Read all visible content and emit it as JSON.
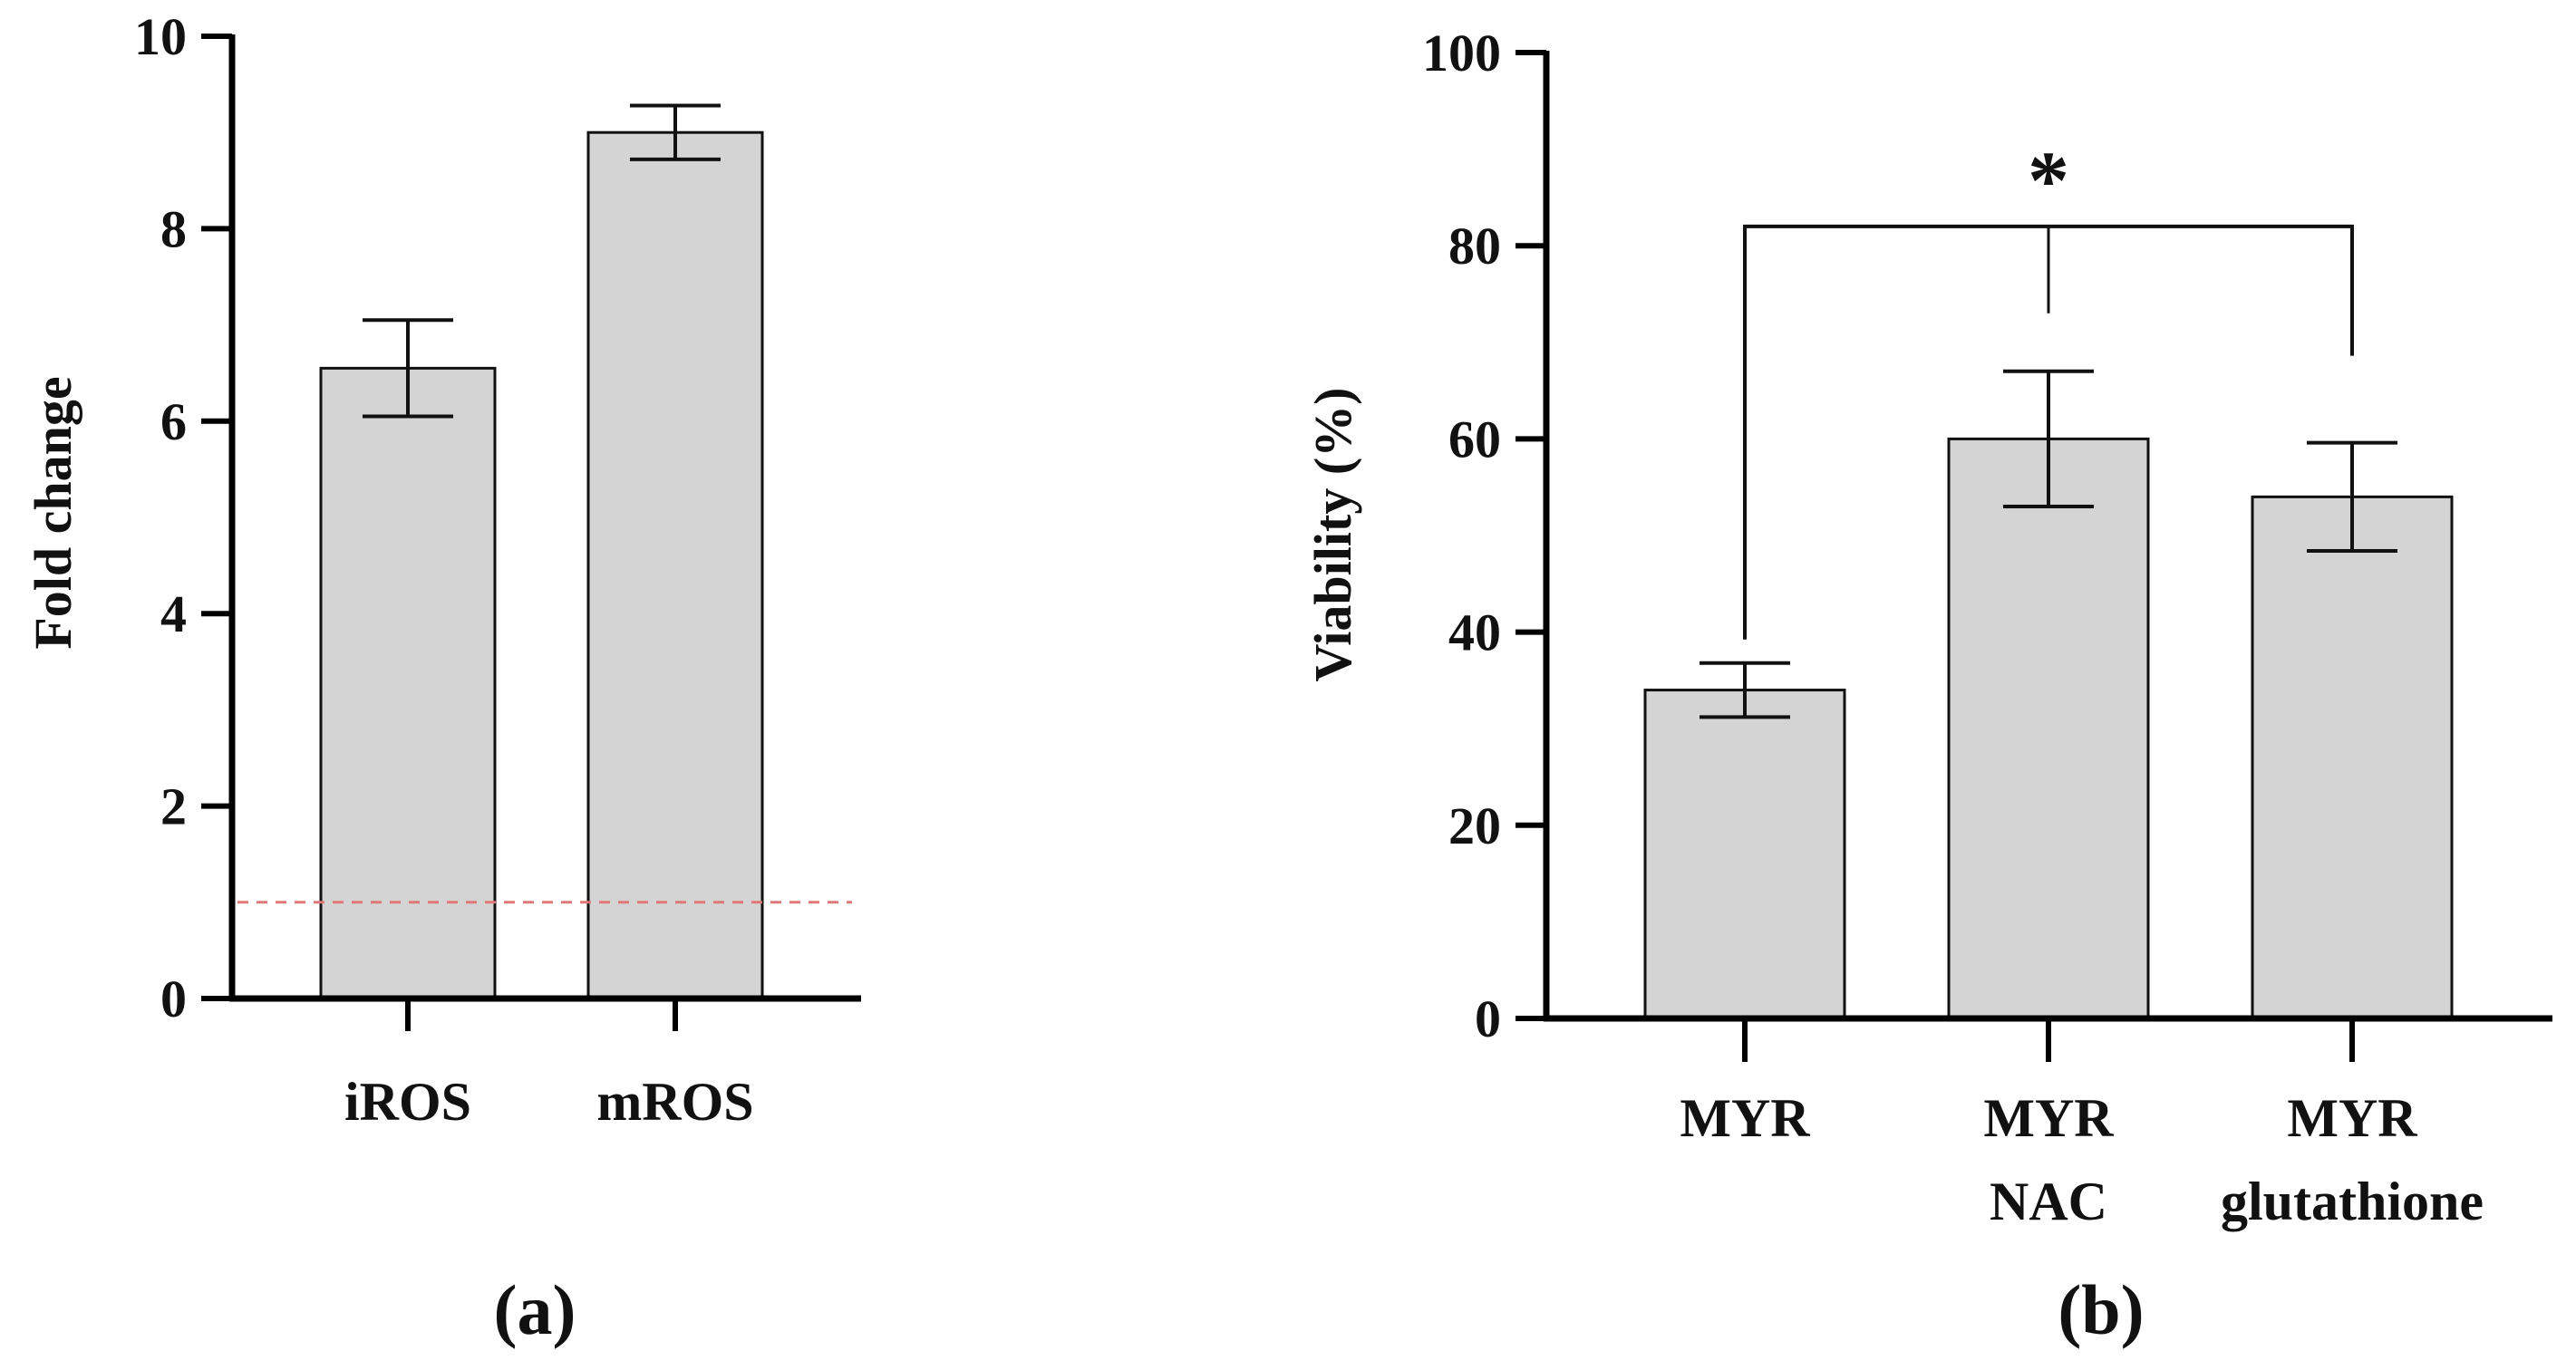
{
  "chart_data": [
    {
      "panel": "(a)",
      "type": "bar",
      "title": "",
      "xlabel": "",
      "ylabel": "Fold change",
      "ylim": [
        0,
        10
      ],
      "yticks": [
        0,
        2,
        4,
        6,
        8,
        10
      ],
      "ytick_labels": [
        "0",
        "2",
        "4",
        "6",
        "8",
        "10"
      ],
      "categories": [
        "iROS",
        "mROS"
      ],
      "category_lines": [
        [
          "iROS"
        ],
        [
          "mROS"
        ]
      ],
      "values": [
        6.55,
        9.0
      ],
      "errors": [
        0.5,
        0.28
      ],
      "reference_line": {
        "value": 1,
        "style": "dashed",
        "color": "#e07878"
      },
      "bar_color": "#d4d4d4",
      "grid": false
    },
    {
      "panel": "(b)",
      "type": "bar",
      "title": "",
      "xlabel": "",
      "ylabel": "Viability (%)",
      "ylim": [
        0,
        100
      ],
      "yticks": [
        0,
        20,
        40,
        60,
        80,
        100
      ],
      "ytick_labels": [
        "0",
        "20",
        "40",
        "60",
        "80",
        "100"
      ],
      "categories": [
        "MYR",
        "MYR NAC",
        "MYR glutathione"
      ],
      "category_lines": [
        [
          "MYR"
        ],
        [
          "MYR",
          "NAC"
        ],
        [
          "MYR",
          "glutathione"
        ]
      ],
      "values": [
        34,
        60,
        54
      ],
      "errors": [
        2.8,
        7.0,
        5.6
      ],
      "significance": {
        "label": "*",
        "from": "MYR",
        "to": [
          "MYR NAC",
          "MYR glutathione"
        ],
        "level": 82
      },
      "bar_color": "#d4d4d4",
      "grid": false
    }
  ]
}
